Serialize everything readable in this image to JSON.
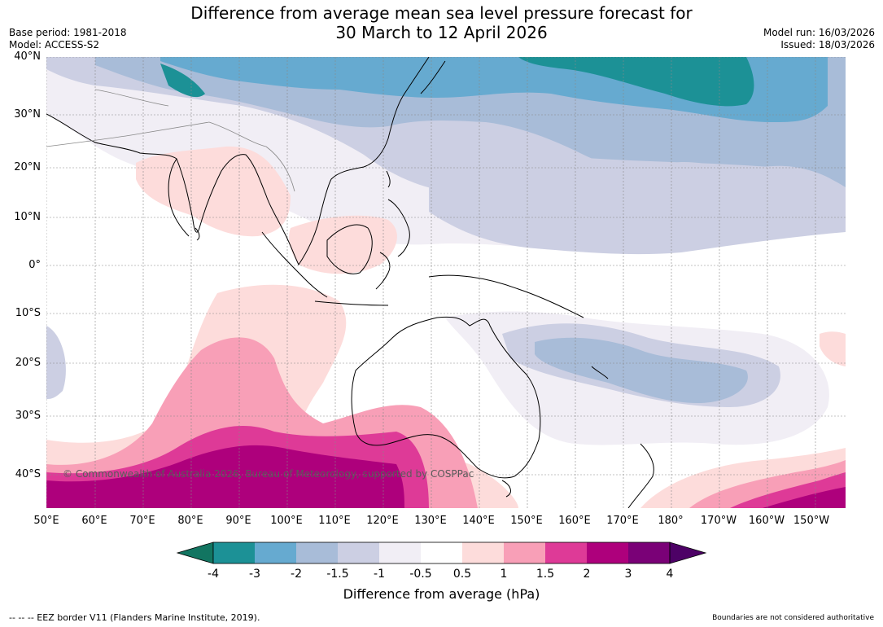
{
  "title": {
    "line1": "Difference from average mean sea level pressure forecast for",
    "line2": "30 March to 12 April 2026"
  },
  "meta": {
    "base_period": "Base period: 1981-2018",
    "model": "Model: ACCESS-S2",
    "model_run": "Model run: 16/03/2026",
    "issued": "Issued: 18/03/2026"
  },
  "map": {
    "lat_labels": [
      "40°N",
      "30°N",
      "20°N",
      "10°N",
      "0°",
      "10°S",
      "20°S",
      "30°S",
      "40°S"
    ],
    "lon_labels": [
      "50°E",
      "60°E",
      "70°E",
      "80°E",
      "90°E",
      "100°E",
      "110°E",
      "120°E",
      "130°E",
      "140°E",
      "150°E",
      "160°E",
      "170°E",
      "180°",
      "170°W",
      "160°W",
      "150°W"
    ],
    "copyright": "© Commonwealth of Australia 2026, Bureau of Meteorology, supported by COSPPac"
  },
  "colorbar": {
    "ticks": [
      "-4",
      "-3",
      "-2",
      "-1.5",
      "-1",
      "-0.5",
      "0.5",
      "1",
      "1.5",
      "2",
      "3",
      "4"
    ],
    "colors": [
      "#127561",
      "#1c9196",
      "#66aad0",
      "#a8bcd8",
      "#cccfe3",
      "#f1eef5",
      "#ffffff",
      "#fddcdb",
      "#f89fb7",
      "#de3a97",
      "#ae007c",
      "#7a0177",
      "#4d0166"
    ],
    "title": "Difference from average (hPa)"
  },
  "footer": {
    "eez": "--  --  -- EEZ border V11 (Flanders Marine Institute, 2019).",
    "disclaimer": "Boundaries are not considered authoritative"
  }
}
